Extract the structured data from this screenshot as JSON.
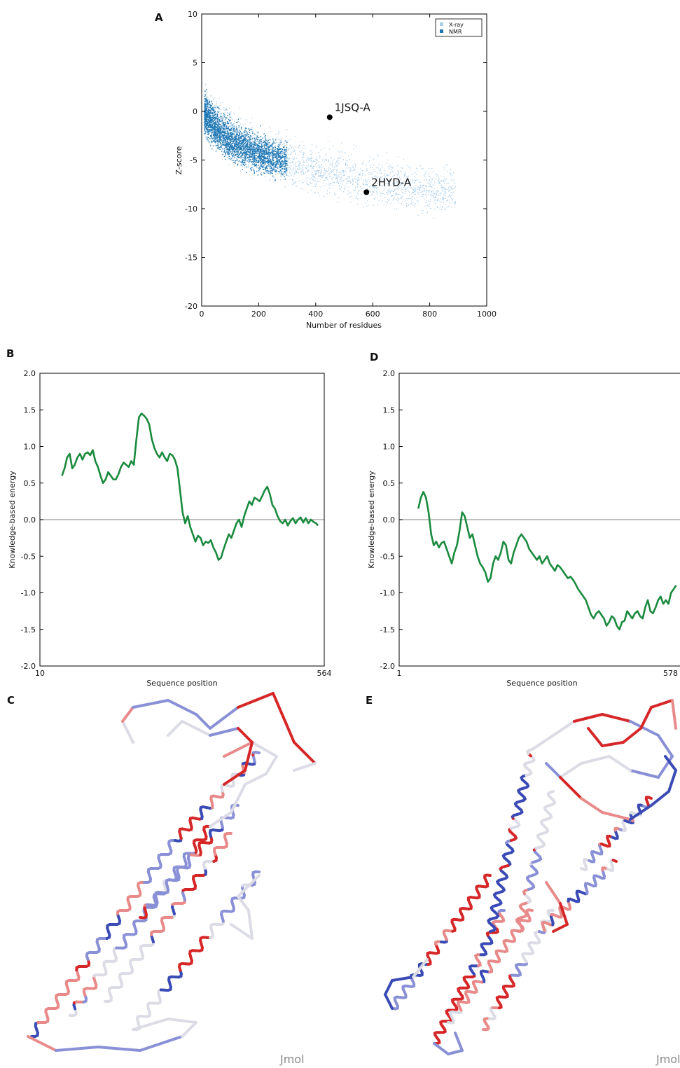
{
  "figure": {
    "panels": [
      "A",
      "B",
      "C",
      "D",
      "E"
    ],
    "watermark": "Jmol"
  },
  "colors": {
    "xray": "#a8cde8",
    "nmr": "#1f77b4",
    "energy_line": "#1a8a3e",
    "zero_line": "#9a9a9a",
    "ribbon_high": "#d62728",
    "ribbon_low": "#3b4bb5",
    "ribbon_mid": "#dcdce6"
  },
  "chart_data": [
    {
      "panel": "A",
      "type": "scatter",
      "xlabel": "Number of residues",
      "ylabel": "Z-score",
      "xlim": [
        0,
        1000
      ],
      "ylim": [
        -20,
        10
      ],
      "xticks": [
        0,
        200,
        400,
        600,
        800,
        1000
      ],
      "yticks": [
        10,
        5,
        0,
        -5,
        -10,
        -15,
        -20
      ],
      "legend": {
        "placement": "top-right",
        "entries": [
          "X-ray",
          "NMR"
        ]
      },
      "series": [
        {
          "name": "X-ray",
          "description_points": "dense cloud from ~10 to ~900 residues, Z-score roughly 2 down to -15"
        },
        {
          "name": "NMR",
          "description_points": "dense cloud from ~10 to ~300 residues, Z-score roughly 2 down to -8"
        }
      ],
      "highlighted_points": [
        {
          "label": "1JSQ-A",
          "x": 449,
          "y": -0.6
        },
        {
          "label": "2HYD-A",
          "x": 578,
          "y": -8.3
        }
      ]
    },
    {
      "panel": "B",
      "type": "line",
      "xlabel": "Sequence position",
      "ylabel": "Knowledge-based energy",
      "xlim": [
        10,
        564
      ],
      "ylim": [
        -2.0,
        2.0
      ],
      "xticks": [
        10,
        564
      ],
      "yticks": [
        2.0,
        1.5,
        1.0,
        0.5,
        0.0,
        -0.5,
        -1.0,
        -1.5,
        -2.0
      ],
      "hline": 0.0,
      "series": [
        {
          "x": [
            53,
            58,
            63,
            68,
            73,
            78,
            83,
            88,
            93,
            98,
            103,
            108,
            113,
            118,
            123,
            128,
            133,
            138,
            143,
            148,
            153,
            158,
            163,
            168,
            173,
            178,
            183,
            188,
            193,
            198,
            203,
            208,
            213,
            218,
            223,
            228,
            233,
            238,
            243,
            248,
            253,
            258,
            263,
            268,
            273,
            278,
            283,
            288,
            293,
            298,
            303,
            308,
            313,
            318,
            323,
            328,
            333,
            338,
            343,
            348,
            353,
            358,
            363,
            368,
            373,
            378,
            383,
            388,
            393,
            398,
            403,
            408,
            413,
            418,
            423,
            428,
            433,
            438,
            443,
            448,
            453,
            458,
            463,
            468,
            473,
            478,
            483,
            488,
            493,
            498,
            503,
            508,
            513,
            518,
            523,
            528,
            533,
            538,
            543,
            548,
            552
          ],
          "y": [
            0.6,
            0.7,
            0.85,
            0.9,
            0.7,
            0.75,
            0.85,
            0.9,
            0.82,
            0.9,
            0.92,
            0.88,
            0.95,
            0.8,
            0.72,
            0.6,
            0.5,
            0.55,
            0.65,
            0.6,
            0.55,
            0.55,
            0.62,
            0.72,
            0.78,
            0.75,
            0.72,
            0.8,
            0.75,
            1.1,
            1.4,
            1.45,
            1.42,
            1.38,
            1.3,
            1.1,
            0.98,
            0.9,
            0.85,
            0.92,
            0.85,
            0.8,
            0.9,
            0.88,
            0.82,
            0.7,
            0.4,
            0.1,
            -0.05,
            0.05,
            -0.1,
            -0.2,
            -0.3,
            -0.22,
            -0.25,
            -0.35,
            -0.3,
            -0.32,
            -0.28,
            -0.38,
            -0.45,
            -0.55,
            -0.52,
            -0.4,
            -0.3,
            -0.2,
            -0.25,
            -0.15,
            -0.05,
            0.0,
            -0.1,
            0.05,
            0.15,
            0.25,
            0.2,
            0.3,
            0.28,
            0.25,
            0.32,
            0.4,
            0.45,
            0.35,
            0.2,
            0.15,
            0.05,
            -0.02,
            -0.05,
            0.0,
            -0.08,
            -0.02,
            0.02,
            -0.05,
            0.0,
            0.03,
            -0.04,
            0.02,
            -0.05,
            0.0,
            -0.03,
            -0.05,
            -0.08
          ]
        }
      ]
    },
    {
      "panel": "D",
      "type": "line",
      "xlabel": "Sequence position",
      "ylabel": "Knowledge-based energy",
      "xlim": [
        1,
        578
      ],
      "ylim": [
        -2.0,
        2.0
      ],
      "xticks": [
        1,
        578
      ],
      "yticks": [
        2.0,
        1.5,
        1.0,
        0.5,
        0.0,
        -0.5,
        -1.0,
        -1.5,
        -2.0
      ],
      "hline": 0.0,
      "series": [
        {
          "x": [
            38,
            43,
            48,
            53,
            58,
            63,
            68,
            73,
            78,
            83,
            88,
            93,
            98,
            103,
            108,
            113,
            118,
            123,
            128,
            133,
            138,
            143,
            148,
            153,
            158,
            163,
            168,
            173,
            178,
            183,
            188,
            193,
            198,
            203,
            208,
            213,
            218,
            223,
            228,
            233,
            238,
            243,
            248,
            253,
            258,
            263,
            268,
            273,
            278,
            283,
            288,
            293,
            298,
            303,
            308,
            313,
            318,
            323,
            328,
            333,
            338,
            343,
            348,
            353,
            358,
            363,
            368,
            373,
            378,
            383,
            388,
            393,
            398,
            403,
            408,
            413,
            418,
            423,
            428,
            433,
            438,
            443,
            448,
            453,
            458,
            463,
            468,
            473,
            478,
            483,
            488,
            493,
            498,
            503,
            508,
            513,
            518,
            523,
            528,
            533,
            538
          ],
          "y": [
            0.15,
            0.3,
            0.38,
            0.3,
            0.1,
            -0.2,
            -0.35,
            -0.3,
            -0.38,
            -0.32,
            -0.3,
            -0.4,
            -0.5,
            -0.6,
            -0.45,
            -0.35,
            -0.15,
            0.1,
            0.05,
            -0.1,
            -0.25,
            -0.2,
            -0.35,
            -0.5,
            -0.6,
            -0.65,
            -0.72,
            -0.85,
            -0.8,
            -0.6,
            -0.5,
            -0.55,
            -0.45,
            -0.3,
            -0.35,
            -0.55,
            -0.6,
            -0.45,
            -0.35,
            -0.25,
            -0.2,
            -0.25,
            -0.3,
            -0.4,
            -0.45,
            -0.5,
            -0.55,
            -0.5,
            -0.6,
            -0.55,
            -0.5,
            -0.6,
            -0.65,
            -0.7,
            -0.62,
            -0.65,
            -0.7,
            -0.75,
            -0.8,
            -0.78,
            -0.82,
            -0.88,
            -0.95,
            -1.0,
            -1.05,
            -1.1,
            -1.2,
            -1.3,
            -1.35,
            -1.28,
            -1.25,
            -1.3,
            -1.35,
            -1.45,
            -1.4,
            -1.32,
            -1.35,
            -1.45,
            -1.5,
            -1.4,
            -1.38,
            -1.25,
            -1.3,
            -1.35,
            -1.28,
            -1.25,
            -1.32,
            -1.35,
            -1.2,
            -1.1,
            -1.25,
            -1.28,
            -1.2,
            -1.1,
            -1.05,
            -1.15,
            -1.1,
            -1.15,
            -1.0,
            -0.95,
            -0.9
          ]
        }
      ]
    }
  ]
}
